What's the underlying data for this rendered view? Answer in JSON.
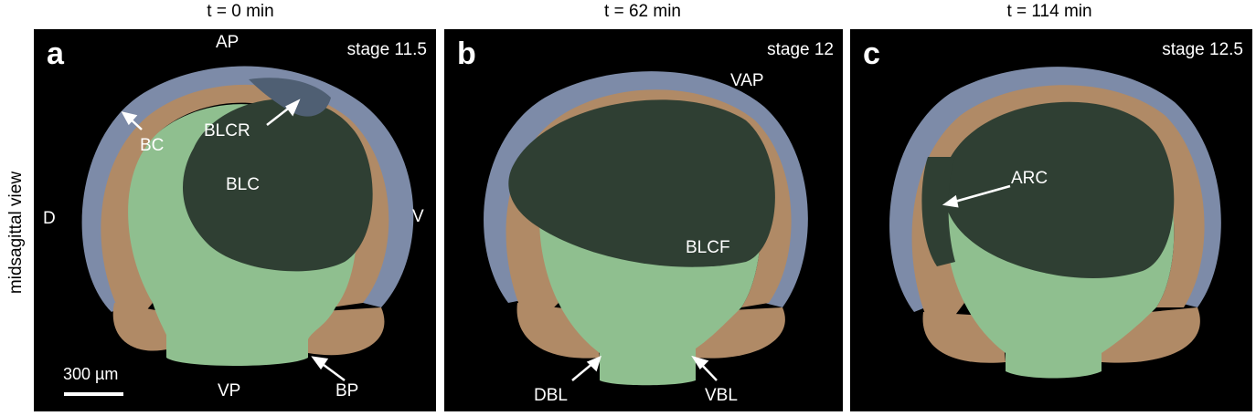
{
  "figure": {
    "side_label": "midsagittal view",
    "colors": {
      "background": "#000000",
      "annotation": "#ffffff",
      "outer_layer": "#7d8ba8",
      "middle_layer": "#b08a66",
      "inner_tissue": "#8fbf8f",
      "blastocoel": "#2f3f33",
      "blastocoel_roof": "#4f5f73"
    },
    "panels": [
      {
        "letter": "a",
        "time": "t = 0 min",
        "stage": "stage 11.5",
        "labels": {
          "ap": "AP",
          "bc": "BC",
          "blcr": "BLCR",
          "blc": "BLC",
          "d": "D",
          "v": "V",
          "vp": "VP",
          "bp": "BP"
        },
        "scale_bar": "300 µm"
      },
      {
        "letter": "b",
        "time": "t = 62 min",
        "stage": "stage 12",
        "labels": {
          "vap": "VAP",
          "blcf": "BLCF",
          "dbl": "DBL",
          "vbl": "VBL"
        }
      },
      {
        "letter": "c",
        "time": "t = 114 min",
        "stage": "stage 12.5",
        "labels": {
          "arc": "ARC"
        }
      }
    ]
  }
}
